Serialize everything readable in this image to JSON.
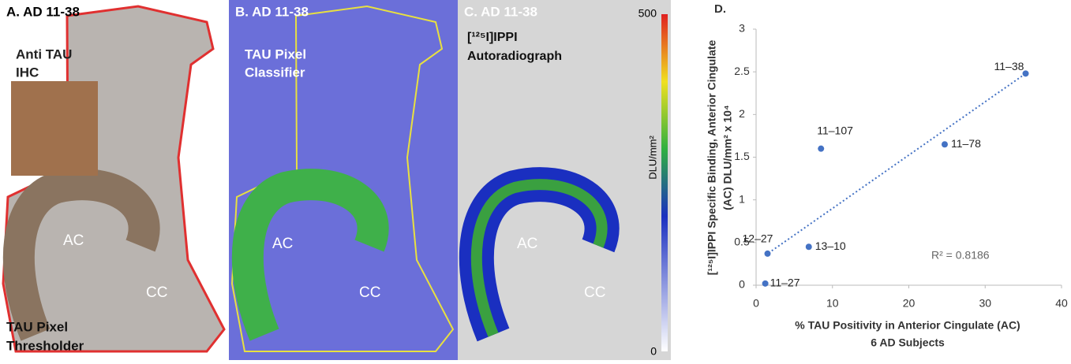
{
  "panels": [
    {
      "title": "A. AD 11-38",
      "texts": [
        "Anti TAU",
        "IHC",
        "AC",
        "CC",
        "TAU Pixel",
        "Thresholder"
      ]
    },
    {
      "title": "B. AD 11-38",
      "texts": [
        "TAU Pixel",
        "Classifier",
        "AC",
        "CC"
      ]
    },
    {
      "title": "C. AD 11-38",
      "texts": [
        "[¹²⁵I]IPPI",
        "Autoradiograph",
        "AC",
        "CC"
      ],
      "colorbar": {
        "lim": [
          0,
          500
        ],
        "label": "DLU/mm²"
      }
    }
  ],
  "chart_data": {
    "type": "scatter",
    "panel_label": "D.",
    "x_label": [
      "% TAU Positivity in Anterior Cingulate (AC)",
      "6 AD Subjects"
    ],
    "y_label": [
      "[¹²⁵I]IPPI Specific Binding, Anterior Cingulate",
      "(AC) DLU/mm² x 10⁴"
    ],
    "x": [
      35.3,
      8.5,
      24.7,
      1.5,
      6.9,
      1.2
    ],
    "values": [
      2.48,
      1.6,
      1.65,
      0.37,
      0.45,
      0.02
    ],
    "point_labels": [
      "11–38",
      "11–107",
      "11–78",
      "12–27",
      "13–10",
      "11–27"
    ],
    "color": "#4472c4",
    "trendline": {
      "x": [
        1.2,
        35.3
      ],
      "y": [
        0.35,
        2.48
      ]
    },
    "annotation": "R² = 0.8186",
    "xlim": [
      0,
      40
    ],
    "xticks": [
      0,
      10,
      20,
      30,
      40
    ],
    "ylim": [
      0,
      3
    ],
    "yticks": [
      0,
      0.5,
      1,
      1.5,
      2,
      2.5,
      3
    ]
  }
}
